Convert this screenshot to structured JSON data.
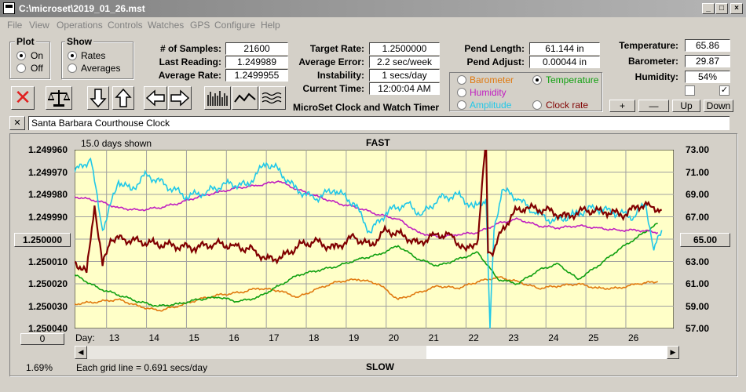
{
  "window": {
    "title": "C:\\microset\\2019_01_26.mst"
  },
  "menu": [
    "File",
    "View",
    "Operations",
    "Controls",
    "Watches",
    "GPS",
    "Configure",
    "Help"
  ],
  "plot_group": {
    "title": "Plot",
    "options": [
      "On",
      "Off"
    ],
    "selected": "On"
  },
  "show_group": {
    "title": "Show",
    "options": [
      "Rates",
      "Averages"
    ],
    "selected": "Rates"
  },
  "stats": {
    "samples_label": "# of Samples:",
    "samples": "21600",
    "last_label": "Last Reading:",
    "last": "1.249989",
    "avg_label": "Average Rate:",
    "avg": "1.2499955",
    "target_label": "Target Rate:",
    "target": "1.2500000",
    "error_label": "Average Error:",
    "error": "2.2 sec/week",
    "instab_label": "Instability:",
    "instab": "1 secs/day",
    "time_label": "Current Time:",
    "time": "12:00:04 AM",
    "pend_len_label": "Pend Length:",
    "pend_len": "61.144 in",
    "pend_adj_label": "Pend Adjust:",
    "pend_adj": "0.00044 in",
    "temp_label": "Temperature:",
    "temp": "65.86",
    "baro_label": "Barometer:",
    "baro": "29.87",
    "hum_label": "Humidity:",
    "hum": "54%"
  },
  "app_name": "MicroSet Clock and Watch Timer",
  "series_options": [
    {
      "label": "Barometer",
      "color": "#e07a10",
      "selected": false
    },
    {
      "label": "Temperature",
      "color": "#10a010",
      "selected": true
    },
    {
      "label": "Humidity",
      "color": "#c020c0",
      "selected": false
    },
    {
      "label": "Amplitude",
      "color": "#20c8e8",
      "selected": false
    },
    {
      "label": "Clock rate",
      "color": "#800000",
      "selected": false
    }
  ],
  "adjust_buttons": [
    "+",
    "—",
    "Up",
    "Down"
  ],
  "checkboxes": [
    false,
    true
  ],
  "close_button": "✕",
  "clock_name": "Santa Barbara Courthouse Clock",
  "chart_data": {
    "type": "line",
    "title": "FAST",
    "bottom_label": "SLOW",
    "days_shown": "15.0 days shown",
    "grid_note": "Each grid line = 0.691 secs/day",
    "percent": "1.69%",
    "left_axis_ticks": [
      "1.249960",
      "1.249970",
      "1.249980",
      "1.249990",
      "1.250000",
      "1.250010",
      "1.250020",
      "1.250030",
      "1.250040"
    ],
    "right_axis_ticks": [
      "73.00",
      "71.00",
      "69.00",
      "67.00",
      "65.00",
      "63.00",
      "61.00",
      "59.00",
      "57.00"
    ],
    "left_mid_button": "1.250000",
    "right_mid_button": "65.00",
    "bottom_left_button": "0",
    "x_label": "Day:",
    "days": [
      "13",
      "14",
      "15",
      "16",
      "17",
      "18",
      "19",
      "20",
      "21",
      "22",
      "23",
      "24",
      "25",
      "26"
    ],
    "x_range": [
      12.2,
      27.2
    ],
    "ylim_rate": [
      1.24996,
      1.25004
    ],
    "ylim_temp": [
      57,
      73
    ],
    "series": [
      {
        "name": "Barometer",
        "color": "#e07a10",
        "x": [
          12.2,
          12.8,
          13.3,
          13.8,
          14.3,
          14.8,
          15.3,
          15.8,
          16.3,
          16.8,
          17.3,
          17.8,
          18.3,
          18.8,
          19.3,
          19.8,
          20.3,
          20.8,
          21.3,
          21.8,
          22.3,
          22.8,
          23.3,
          23.8,
          24.3,
          24.8,
          25.3,
          25.8,
          26.3,
          26.8
        ],
        "y": [
          1.250029,
          1.250028,
          1.250027,
          1.25003,
          1.250032,
          1.25003,
          1.250027,
          1.250025,
          1.250024,
          1.250022,
          1.250023,
          1.250026,
          1.250022,
          1.250019,
          1.250018,
          1.25002,
          1.250027,
          1.250024,
          1.250021,
          1.250022,
          1.250019,
          1.250017,
          1.250019,
          1.250022,
          1.250021,
          1.25002,
          1.250022,
          1.250022,
          1.25002,
          1.250019
        ]
      },
      {
        "name": "Temperature",
        "color": "#10a010",
        "x": [
          12.2,
          12.8,
          13.3,
          13.8,
          14.3,
          14.8,
          15.3,
          15.8,
          16.3,
          16.8,
          17.3,
          17.8,
          18.3,
          18.8,
          19.3,
          19.8,
          20.3,
          20.8,
          21.3,
          21.8,
          22.3,
          22.8,
          23.3,
          23.8,
          24.3,
          24.8,
          25.3,
          25.8,
          26.3,
          26.8
        ],
        "y": [
          1.250016,
          1.250022,
          1.250025,
          1.250028,
          1.25003,
          1.250029,
          1.250027,
          1.250026,
          1.250028,
          1.250026,
          1.250021,
          1.250016,
          1.250014,
          1.250012,
          1.250009,
          1.250007,
          1.250003,
          1.250009,
          1.250012,
          1.250009,
          1.250006,
          1.250018,
          1.25002,
          1.250014,
          1.250011,
          1.250018,
          1.250012,
          1.250005,
          1.249999,
          1.249993
        ]
      },
      {
        "name": "Humidity",
        "color": "#c020c0",
        "x": [
          12.2,
          12.8,
          13.3,
          13.8,
          14.3,
          14.8,
          15.3,
          15.8,
          16.3,
          16.8,
          17.3,
          17.8,
          18.3,
          18.8,
          19.3,
          19.8,
          20.3,
          20.8,
          21.3,
          21.8,
          22.3,
          22.8,
          23.3,
          23.8,
          24.3,
          24.8,
          25.3,
          25.8,
          26.3,
          26.8
        ],
        "y": [
          1.249981,
          1.249983,
          1.249986,
          1.249987,
          1.249986,
          1.249984,
          1.249981,
          1.249979,
          1.249977,
          1.249976,
          1.249974,
          1.249978,
          1.249981,
          1.249984,
          1.249986,
          1.249989,
          1.249991,
          1.249997,
          1.249999,
          1.249998,
          1.249997,
          1.249993,
          1.249991,
          1.249994,
          1.249995,
          1.249994,
          1.249995,
          1.249996,
          1.249996,
          1.249997
        ]
      },
      {
        "name": "Amplitude",
        "color": "#20c8e8",
        "x": [
          12.2,
          12.6,
          12.9,
          13.3,
          13.6,
          14.0,
          14.5,
          15.0,
          15.5,
          16.0,
          16.5,
          17.0,
          17.3,
          17.7,
          18.2,
          18.7,
          19.2,
          19.6,
          20.0,
          20.5,
          20.9,
          21.3,
          21.8,
          22.2,
          22.5,
          22.6,
          22.7,
          22.9,
          23.3,
          23.7,
          24.2,
          24.7,
          25.2,
          25.7,
          26.2,
          26.5,
          26.7,
          26.9
        ],
        "y": [
          1.24997,
          1.249964,
          1.249996,
          1.249974,
          1.249978,
          1.249971,
          1.249976,
          1.249981,
          1.249979,
          1.249975,
          1.249976,
          1.249966,
          1.249969,
          1.249977,
          1.249982,
          1.249978,
          1.249984,
          1.249997,
          1.249988,
          1.249984,
          1.249989,
          1.249982,
          1.24998,
          1.249986,
          1.249982,
          1.25004,
          1.249996,
          1.249978,
          1.249982,
          1.249988,
          1.249992,
          1.249989,
          1.249986,
          1.249988,
          1.24999,
          1.249984,
          1.250005,
          1.249996
        ]
      },
      {
        "name": "Clock rate",
        "color": "#800000",
        "x": [
          12.2,
          12.5,
          12.7,
          12.9,
          13.1,
          13.4,
          13.8,
          14.2,
          14.7,
          15.2,
          15.7,
          16.2,
          16.7,
          17.0,
          17.4,
          17.8,
          18.2,
          18.7,
          19.2,
          19.6,
          20.0,
          20.4,
          20.8,
          21.2,
          21.6,
          22.0,
          22.3,
          22.5,
          22.55,
          22.6,
          22.7,
          22.9,
          23.2,
          23.5,
          24.0,
          24.5,
          25.0,
          25.5,
          26.0,
          26.3,
          26.6,
          26.9
        ],
        "y": [
          1.25001,
          1.250015,
          1.249985,
          1.250012,
          1.25,
          1.25,
          1.250001,
          1.250002,
          1.250003,
          1.250004,
          1.250002,
          1.250003,
          1.250005,
          1.250009,
          1.250008,
          1.250003,
          1.250001,
          1.250004,
          1.249999,
          1.250003,
          1.249996,
          1.249998,
          1.250002,
          1.249998,
          1.249998,
          1.250005,
          1.25,
          1.249955,
          1.250006,
          1.250006,
          1.250005,
          1.249996,
          1.249988,
          1.249986,
          1.249987,
          1.24999,
          1.249987,
          1.249988,
          1.249989,
          1.249985,
          1.249985,
          1.249987
        ]
      }
    ]
  }
}
